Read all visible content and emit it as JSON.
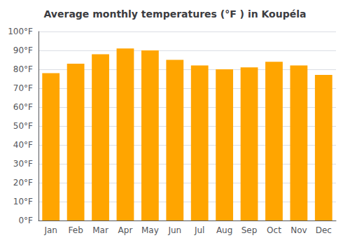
{
  "chart_data": {
    "type": "bar",
    "title": "Average monthly temperatures (°F ) in Koupéla",
    "categories": [
      "Jan",
      "Feb",
      "Mar",
      "Apr",
      "May",
      "Jun",
      "Jul",
      "Aug",
      "Sep",
      "Oct",
      "Nov",
      "Dec"
    ],
    "values": [
      78,
      83,
      88,
      91,
      90,
      85,
      82,
      80,
      81,
      84,
      82,
      77
    ],
    "color": "#FFA500",
    "ylim": [
      0,
      100
    ],
    "yticks": [
      {
        "value": 0,
        "label": "0°F"
      },
      {
        "value": 10,
        "label": "10°F"
      },
      {
        "value": 20,
        "label": "20°F"
      },
      {
        "value": 30,
        "label": "30°F"
      },
      {
        "value": 40,
        "label": "40°F"
      },
      {
        "value": 50,
        "label": "50°F"
      },
      {
        "value": 60,
        "label": "60°F"
      },
      {
        "value": 70,
        "label": "70°F"
      },
      {
        "value": 80,
        "label": "80°F"
      },
      {
        "value": 90,
        "label": "90°F"
      },
      {
        "value": 100,
        "label": "100°F"
      }
    ],
    "grid": true
  }
}
